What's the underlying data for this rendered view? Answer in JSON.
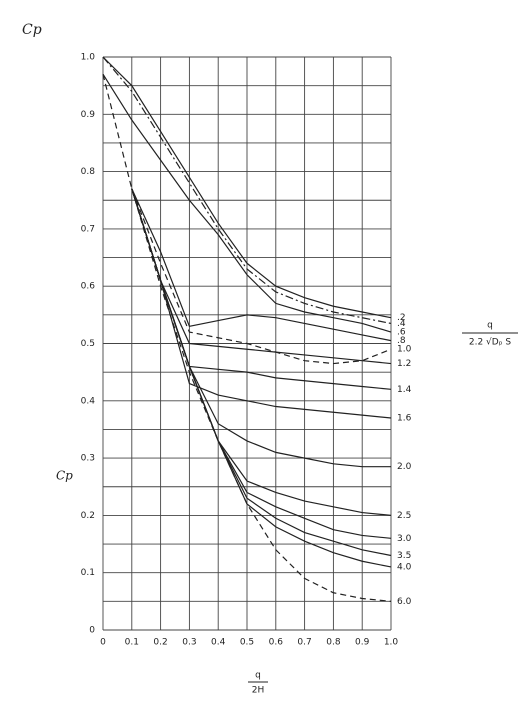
{
  "chart_data": {
    "type": "line",
    "title": "Cp",
    "y_label": "Cp",
    "x_label": {
      "numerator": "q",
      "denominator": "2H"
    },
    "annotation": {
      "numerator": "q",
      "denominator": "2.2 √Dₚ S"
    },
    "x": [
      0,
      0.1,
      0.2,
      0.3,
      0.4,
      0.5,
      0.6,
      0.7,
      0.8,
      0.9,
      1.0
    ],
    "xlim": [
      0,
      1
    ],
    "ylim": [
      0,
      1
    ],
    "xticks": [
      0,
      0.1,
      0.2,
      0.3,
      0.4,
      0.5,
      0.6,
      0.7,
      0.8,
      0.9,
      {
        "value": 1,
        "label": "1.0"
      }
    ],
    "yticks": [
      0,
      0.1,
      0.2,
      0.3,
      0.4,
      0.5,
      0.6,
      0.7,
      0.8,
      0.9,
      {
        "value": 1,
        "label": "1.0"
      }
    ],
    "yminorticks": [
      0.05,
      0.15,
      0.25,
      0.35,
      0.45,
      0.55,
      0.65,
      0.75,
      0.85,
      0.95
    ],
    "grid": true,
    "series": [
      {
        "name": ".2",
        "color": "#222",
        "dash": "solid",
        "values": [
          1.0,
          0.95,
          0.87,
          0.79,
          0.71,
          0.64,
          0.6,
          0.58,
          0.565,
          0.555,
          0.545
        ]
      },
      {
        "name": ".4",
        "color": "#222",
        "dash": "dashdot",
        "values": [
          1.0,
          0.94,
          0.86,
          0.78,
          0.7,
          0.63,
          0.59,
          0.57,
          0.555,
          0.545,
          0.535
        ]
      },
      {
        "name": ".6",
        "color": "#222",
        "dash": "solid",
        "values": [
          0.97,
          0.89,
          0.82,
          0.75,
          0.69,
          0.62,
          0.57,
          0.555,
          0.545,
          0.535,
          0.52
        ]
      },
      {
        "name": ".8",
        "color": "#222",
        "dash": "solid",
        "values": [
          null,
          0.77,
          0.66,
          0.53,
          0.54,
          0.55,
          0.545,
          0.535,
          0.525,
          0.515,
          0.505
        ]
      },
      {
        "name": "1.0",
        "color": "#222",
        "dash": "dashed",
        "values": [
          0.97,
          0.77,
          0.64,
          0.52,
          0.51,
          0.5,
          0.485,
          0.47,
          0.465,
          0.47,
          0.49
        ]
      },
      {
        "name": "1.2",
        "color": "#222",
        "dash": "solid",
        "values": [
          null,
          0.77,
          0.61,
          0.5,
          0.495,
          0.49,
          0.485,
          0.48,
          0.475,
          0.47,
          0.465
        ]
      },
      {
        "name": "1.4",
        "color": "#222",
        "dash": "solid",
        "values": [
          null,
          0.77,
          0.61,
          0.46,
          0.455,
          0.45,
          0.44,
          0.435,
          0.43,
          0.425,
          0.42
        ]
      },
      {
        "name": "1.6",
        "color": "#222",
        "dash": "solid",
        "values": [
          null,
          0.77,
          0.61,
          0.43,
          0.41,
          0.4,
          0.39,
          0.385,
          0.38,
          0.375,
          0.37
        ]
      },
      {
        "name": "2.0",
        "color": "#222",
        "dash": "solid",
        "values": [
          null,
          0.77,
          0.61,
          0.46,
          0.36,
          0.33,
          0.31,
          0.3,
          0.29,
          0.285,
          0.285
        ]
      },
      {
        "name": "2.5",
        "color": "#222",
        "dash": "solid",
        "values": [
          null,
          0.77,
          0.61,
          0.46,
          0.33,
          0.26,
          0.24,
          0.225,
          0.215,
          0.205,
          0.2
        ]
      },
      {
        "name": "3.0",
        "color": "#222",
        "dash": "solid",
        "values": [
          null,
          0.77,
          0.61,
          0.46,
          0.33,
          0.24,
          0.215,
          0.195,
          0.175,
          0.165,
          0.16
        ]
      },
      {
        "name": "3.5",
        "color": "#222",
        "dash": "solid",
        "values": [
          null,
          0.77,
          0.61,
          0.46,
          0.33,
          0.23,
          0.195,
          0.17,
          0.155,
          0.14,
          0.13
        ]
      },
      {
        "name": "4.0",
        "color": "#222",
        "dash": "solid",
        "values": [
          null,
          0.77,
          0.61,
          0.46,
          0.33,
          0.22,
          0.18,
          0.155,
          0.135,
          0.12,
          0.11
        ]
      },
      {
        "name": "6.0",
        "color": "#222",
        "dash": "dashed",
        "values": [
          null,
          0.77,
          0.6,
          0.45,
          0.33,
          0.22,
          0.14,
          0.09,
          0.065,
          0.055,
          0.05
        ]
      }
    ]
  }
}
